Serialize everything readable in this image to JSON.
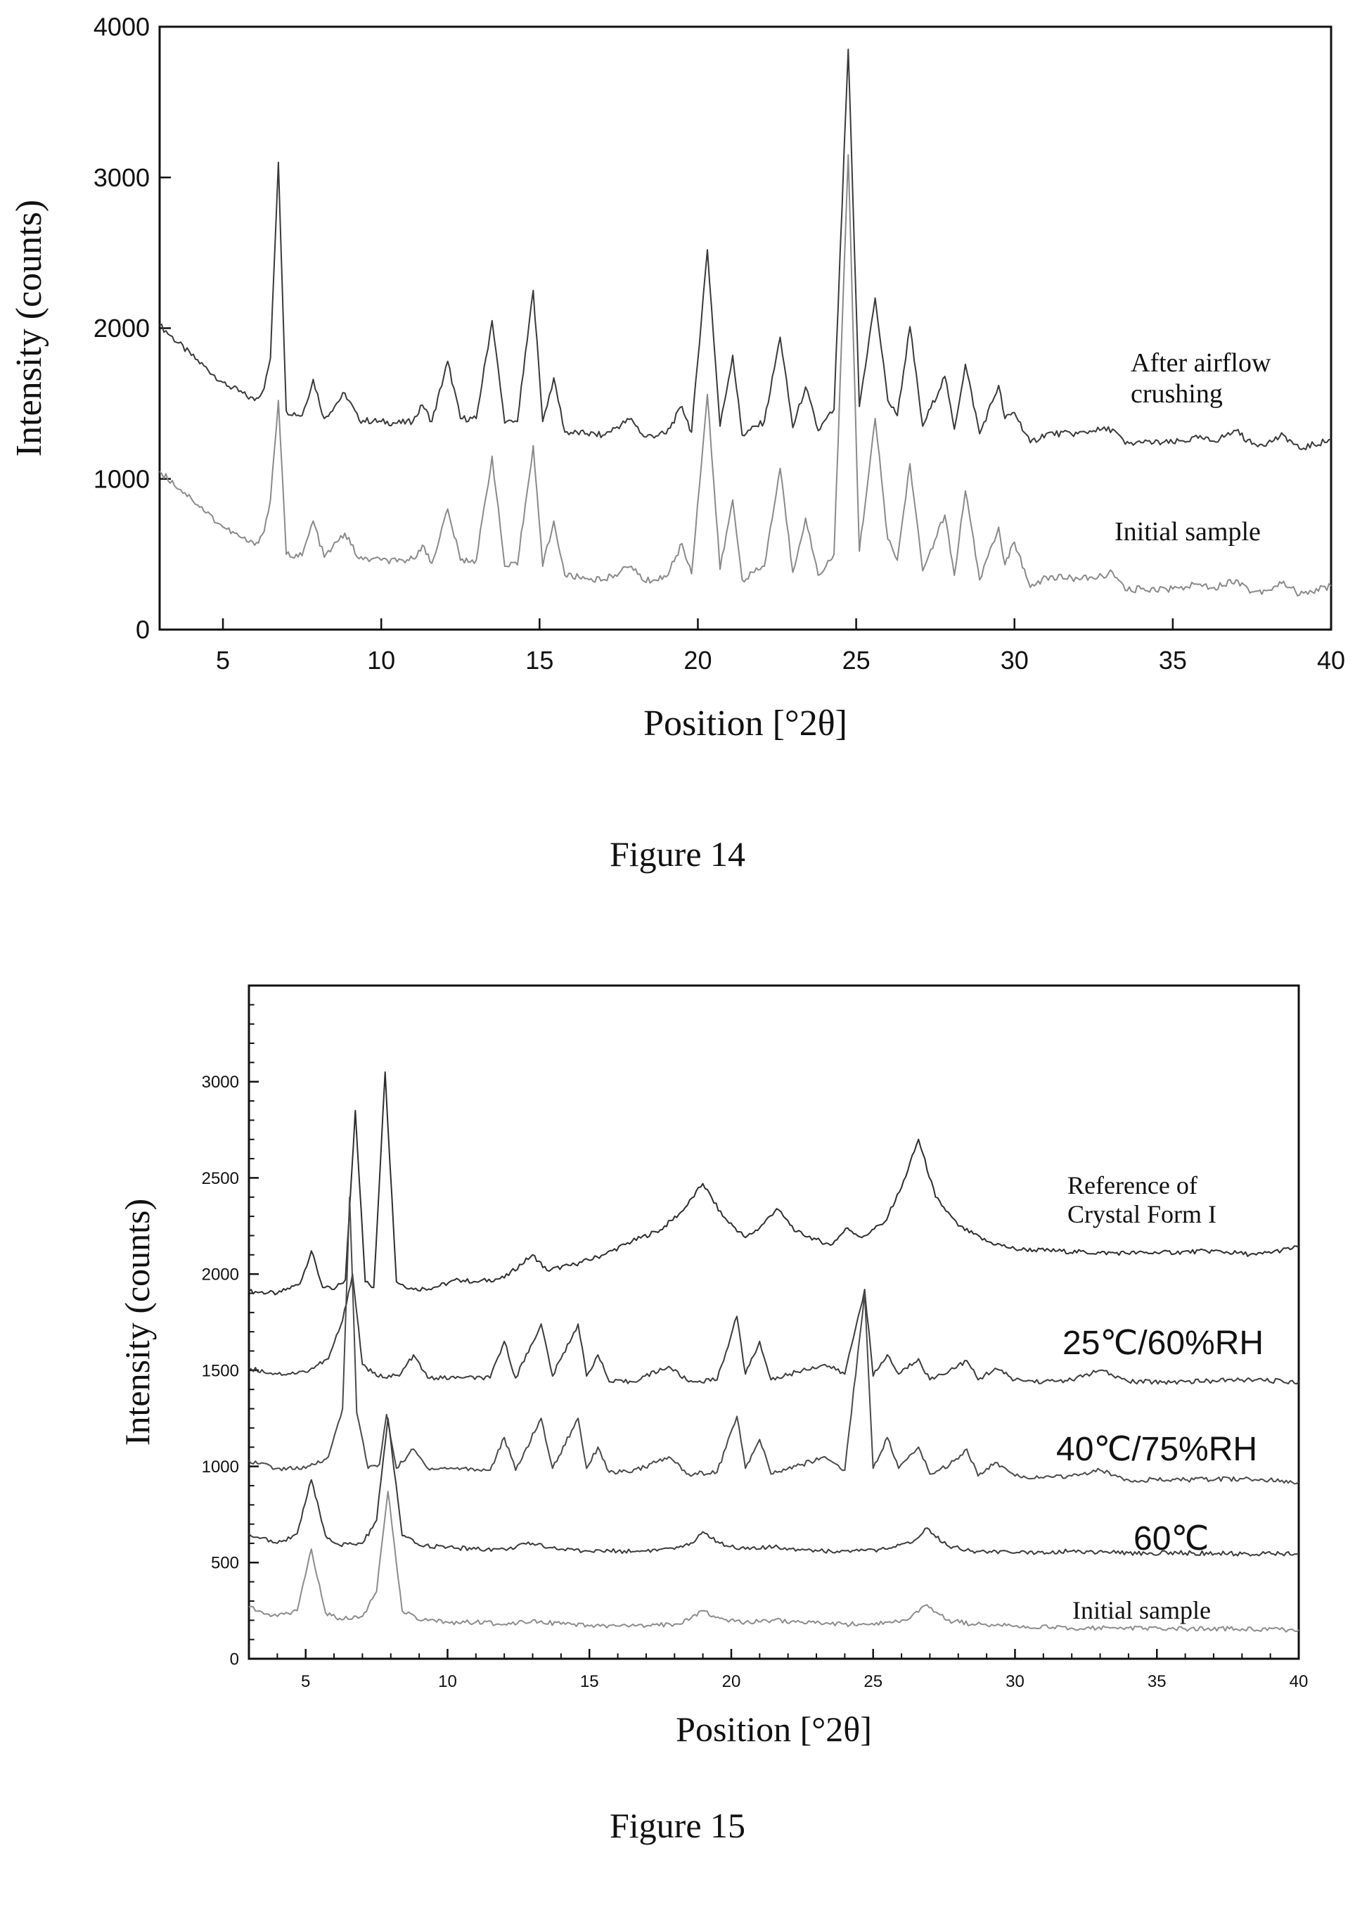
{
  "chart_data": [
    {
      "type": "line",
      "figure_caption": "Figure 14",
      "xlabel": "Position [°2θ]",
      "ylabel": "Intensity (counts)",
      "xlim": [
        3,
        40
      ],
      "ylim": [
        0,
        4000
      ],
      "xticks": [
        5,
        10,
        15,
        20,
        25,
        30,
        35,
        40
      ],
      "yticks": [
        0,
        1000,
        2000,
        3000,
        4000
      ],
      "grid": false,
      "series": [
        {
          "name": "After airflow crushing",
          "color": "#3a3a3a",
          "x": [
            3.0,
            4.0,
            5.0,
            5.5,
            6.0,
            6.3,
            6.5,
            6.75,
            7.0,
            7.5,
            7.85,
            8.2,
            8.85,
            9.3,
            10.0,
            10.5,
            11.0,
            11.3,
            11.6,
            12.1,
            12.5,
            13.0,
            13.5,
            13.9,
            14.3,
            14.8,
            15.1,
            15.45,
            15.8,
            16.5,
            17.0,
            17.9,
            18.3,
            19.0,
            19.5,
            19.8,
            20.3,
            20.7,
            21.1,
            21.4,
            22.1,
            22.6,
            23.0,
            23.4,
            23.8,
            24.3,
            24.75,
            25.1,
            25.6,
            26.0,
            26.3,
            26.7,
            27.1,
            27.8,
            28.1,
            28.45,
            28.9,
            29.5,
            29.7,
            30.0,
            30.5,
            31.0,
            32.0,
            32.5,
            33.1,
            33.5,
            34.0,
            35.0,
            35.8,
            36.3,
            37.0,
            37.5,
            38.0,
            38.5,
            39.0,
            40.0
          ],
          "values": [
            2020,
            1820,
            1640,
            1580,
            1520,
            1600,
            1800,
            3100,
            1450,
            1420,
            1660,
            1400,
            1570,
            1390,
            1380,
            1370,
            1380,
            1490,
            1380,
            1780,
            1400,
            1400,
            2050,
            1370,
            1380,
            2250,
            1380,
            1670,
            1310,
            1300,
            1290,
            1400,
            1280,
            1300,
            1480,
            1310,
            2520,
            1350,
            1820,
            1290,
            1380,
            1940,
            1340,
            1610,
            1320,
            1460,
            3850,
            1480,
            2200,
            1520,
            1420,
            2010,
            1350,
            1680,
            1330,
            1760,
            1300,
            1620,
            1400,
            1440,
            1240,
            1300,
            1300,
            1320,
            1330,
            1230,
            1240,
            1240,
            1270,
            1250,
            1320,
            1230,
            1240,
            1290,
            1200,
            1260
          ]
        },
        {
          "name": "Initial sample",
          "color": "#8a8a8a",
          "x": [
            3.0,
            4.0,
            5.0,
            5.5,
            6.0,
            6.3,
            6.5,
            6.75,
            7.0,
            7.5,
            7.85,
            8.2,
            8.85,
            9.3,
            10.0,
            10.5,
            11.0,
            11.3,
            11.6,
            12.1,
            12.5,
            13.0,
            13.5,
            13.9,
            14.3,
            14.8,
            15.1,
            15.45,
            15.8,
            16.5,
            17.0,
            17.9,
            18.3,
            19.0,
            19.5,
            19.8,
            20.3,
            20.7,
            21.1,
            21.4,
            22.1,
            22.6,
            23.0,
            23.4,
            23.8,
            24.3,
            24.75,
            25.1,
            25.6,
            26.0,
            26.3,
            26.7,
            27.1,
            27.8,
            28.1,
            28.45,
            28.9,
            29.5,
            29.7,
            30.0,
            30.5,
            31.0,
            32.0,
            32.5,
            33.1,
            33.5,
            34.0,
            35.0,
            35.8,
            36.3,
            37.0,
            37.5,
            38.0,
            38.5,
            39.0,
            40.0
          ],
          "values": [
            1050,
            870,
            680,
            620,
            560,
            650,
            860,
            1520,
            500,
            490,
            720,
            480,
            640,
            470,
            460,
            450,
            470,
            560,
            440,
            800,
            460,
            460,
            1150,
            420,
            430,
            1220,
            420,
            720,
            360,
            340,
            330,
            420,
            320,
            350,
            570,
            370,
            1560,
            400,
            860,
            330,
            420,
            1070,
            380,
            740,
            360,
            500,
            3150,
            520,
            1400,
            600,
            460,
            1100,
            390,
            760,
            360,
            920,
            330,
            680,
            430,
            580,
            280,
            350,
            340,
            340,
            380,
            260,
            270,
            270,
            300,
            280,
            330,
            250,
            260,
            320,
            230,
            290
          ]
        }
      ],
      "annotations": [
        "After airflow",
        "crushing",
        "Initial sample"
      ]
    },
    {
      "type": "line",
      "figure_caption": "Figure 15",
      "xlabel": "Position [°2θ]",
      "ylabel": "Intensity (counts)",
      "xlim": [
        3,
        40
      ],
      "ylim": [
        0,
        3500
      ],
      "xticks": [
        5,
        10,
        15,
        20,
        25,
        30,
        35,
        40
      ],
      "yticks": [
        0,
        500,
        1000,
        1500,
        2000,
        2500,
        3000
      ],
      "grid": false,
      "series": [
        {
          "name": "Reference of Crystal Form I",
          "color": "#2e2e2e",
          "x": [
            3.0,
            4.0,
            4.8,
            5.2,
            5.6,
            6.0,
            6.4,
            6.75,
            7.1,
            7.4,
            7.8,
            8.2,
            8.8,
            9.5,
            10.4,
            11.0,
            12.0,
            13.0,
            13.5,
            14.5,
            15.5,
            16.5,
            17.5,
            18.3,
            19.0,
            19.7,
            20.5,
            21.0,
            21.6,
            22.3,
            23.0,
            23.5,
            24.1,
            24.6,
            25.4,
            26.0,
            26.6,
            27.2,
            28.0,
            29.0,
            30.0,
            31.5,
            33.0,
            35.0,
            37.0,
            38.5,
            40.0
          ],
          "values": [
            1910,
            1900,
            1950,
            2120,
            1930,
            1920,
            1970,
            2850,
            1960,
            1930,
            3050,
            1960,
            1920,
            1930,
            1970,
            1960,
            1980,
            2100,
            2020,
            2050,
            2100,
            2170,
            2230,
            2330,
            2470,
            2300,
            2190,
            2240,
            2340,
            2220,
            2180,
            2150,
            2240,
            2190,
            2270,
            2450,
            2700,
            2400,
            2250,
            2170,
            2130,
            2120,
            2110,
            2110,
            2120,
            2100,
            2140
          ]
        },
        {
          "name": "25℃/60%RH",
          "color": "#3c3c3c",
          "x": [
            3.0,
            4.0,
            5.0,
            5.8,
            6.3,
            6.65,
            7.0,
            7.5,
            8.3,
            8.8,
            9.3,
            10.5,
            11.5,
            12.0,
            12.4,
            13.3,
            13.7,
            14.6,
            14.9,
            15.3,
            15.7,
            16.5,
            17.8,
            18.5,
            19.5,
            20.2,
            20.5,
            21.0,
            21.4,
            22.5,
            23.3,
            24.0,
            24.7,
            25.0,
            25.5,
            25.9,
            26.6,
            27.0,
            27.7,
            28.3,
            28.7,
            29.3,
            30.0,
            31.0,
            32.0,
            33.0,
            34.0,
            36.0,
            38.0,
            40.0
          ],
          "values": [
            1510,
            1480,
            1490,
            1560,
            1760,
            2000,
            1530,
            1470,
            1470,
            1580,
            1460,
            1460,
            1460,
            1650,
            1460,
            1740,
            1470,
            1740,
            1470,
            1580,
            1440,
            1440,
            1520,
            1440,
            1450,
            1780,
            1480,
            1650,
            1450,
            1500,
            1530,
            1480,
            1920,
            1470,
            1580,
            1480,
            1560,
            1450,
            1500,
            1550,
            1450,
            1510,
            1450,
            1440,
            1450,
            1500,
            1440,
            1440,
            1450,
            1440
          ]
        },
        {
          "name": "40℃/75%RH",
          "color": "#4a4a4a",
          "x": [
            3.0,
            4.0,
            5.0,
            5.8,
            6.3,
            6.55,
            6.8,
            7.2,
            7.6,
            7.85,
            8.2,
            8.8,
            9.3,
            10.5,
            11.5,
            12.0,
            12.4,
            13.3,
            13.7,
            14.6,
            14.9,
            15.3,
            15.7,
            16.5,
            17.8,
            18.5,
            19.5,
            20.2,
            20.5,
            21.0,
            21.4,
            22.5,
            23.3,
            24.0,
            24.7,
            25.0,
            25.5,
            25.9,
            26.6,
            27.0,
            27.7,
            28.3,
            28.7,
            29.3,
            30.0,
            31.0,
            32.0,
            33.0,
            34.0,
            36.0,
            38.0,
            40.0
          ],
          "values": [
            1030,
            990,
            990,
            1050,
            1300,
            2400,
            1280,
            990,
            1010,
            1270,
            990,
            1090,
            990,
            990,
            980,
            1150,
            980,
            1250,
            990,
            1250,
            990,
            1100,
            970,
            970,
            1050,
            960,
            970,
            1260,
            990,
            1140,
            960,
            1010,
            1050,
            980,
            1900,
            990,
            1150,
            990,
            1100,
            960,
            1010,
            1090,
            950,
            1020,
            950,
            940,
            950,
            980,
            930,
            930,
            935,
            920
          ]
        },
        {
          "name": "60℃",
          "color": "#3a3a3a",
          "x": [
            3.0,
            4.0,
            4.7,
            5.2,
            5.7,
            6.2,
            7.0,
            7.5,
            7.9,
            8.4,
            9.0,
            10.0,
            11.0,
            12.0,
            13.0,
            14.0,
            15.0,
            16.0,
            17.0,
            18.0,
            18.5,
            19.0,
            19.6,
            20.5,
            21.5,
            22.5,
            23.5,
            24.5,
            25.5,
            26.3,
            26.9,
            27.6,
            28.5,
            30.0,
            32.0,
            34.0,
            36.0,
            38.0,
            40.0
          ],
          "values": [
            650,
            600,
            650,
            930,
            640,
            590,
            600,
            720,
            1250,
            640,
            590,
            580,
            570,
            570,
            600,
            570,
            560,
            560,
            560,
            570,
            590,
            660,
            600,
            570,
            580,
            570,
            560,
            560,
            570,
            600,
            680,
            590,
            560,
            550,
            560,
            550,
            550,
            545,
            545
          ]
        },
        {
          "name": "Initial sample",
          "color": "#8c8c8c",
          "x": [
            3.0,
            4.0,
            4.7,
            5.2,
            5.7,
            6.2,
            7.0,
            7.5,
            7.9,
            8.4,
            9.0,
            10.0,
            11.0,
            12.0,
            13.0,
            14.0,
            15.0,
            16.0,
            17.0,
            18.0,
            18.5,
            19.0,
            19.6,
            20.5,
            21.5,
            22.5,
            23.5,
            24.5,
            25.5,
            26.3,
            26.9,
            27.6,
            28.5,
            30.0,
            32.0,
            34.0,
            36.0,
            38.0,
            40.0
          ],
          "values": [
            270,
            220,
            250,
            570,
            240,
            210,
            220,
            350,
            870,
            250,
            200,
            190,
            190,
            180,
            200,
            180,
            170,
            170,
            170,
            180,
            200,
            250,
            210,
            190,
            200,
            190,
            180,
            180,
            190,
            210,
            280,
            200,
            180,
            170,
            160,
            160,
            155,
            155,
            150
          ]
        }
      ],
      "annotations": [
        "Reference of",
        "Crystal Form I",
        "25℃/60%RH",
        "40℃/75%RH",
        "60℃",
        "Initial sample"
      ]
    }
  ]
}
